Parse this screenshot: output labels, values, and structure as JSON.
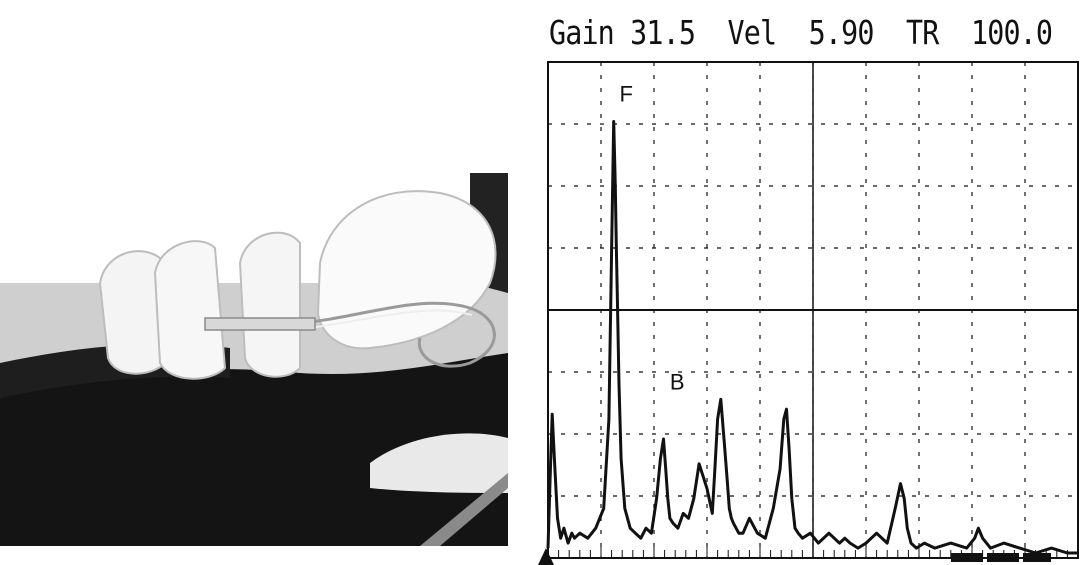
{
  "header": {
    "gain_label": "Gain",
    "gain_value": "31.5",
    "vel_label": "Vel",
    "vel_value": "5.90",
    "tr_label": "TR",
    "tr_value": "100.0"
  },
  "chart_data": {
    "type": "line",
    "title": "",
    "xlabel": "",
    "ylabel": "",
    "xlim": [
      0,
      10
    ],
    "ylim": [
      0,
      100
    ],
    "grid": true,
    "gate_level": 50,
    "annotations": [
      {
        "text": "F",
        "x": 1.35,
        "y": 92
      },
      {
        "text": "B",
        "x": 2.3,
        "y": 34
      }
    ],
    "series": [
      {
        "x": [
          0,
          0.04,
          0.08,
          0.12,
          0.18,
          0.24,
          0.3,
          0.38,
          0.45,
          0.5,
          0.6,
          0.75,
          0.9,
          1.05,
          1.15,
          1.2,
          1.24,
          1.27,
          1.29,
          1.31,
          1.34,
          1.38,
          1.45,
          1.55,
          1.65,
          1.75,
          1.85,
          1.95,
          2.05,
          2.12,
          2.18,
          2.22,
          2.26,
          2.3,
          2.36,
          2.45,
          2.55,
          2.65,
          2.75,
          2.85,
          3.0,
          3.1,
          3.15,
          3.2,
          3.26,
          3.32,
          3.38,
          3.42,
          3.46,
          3.5,
          3.55,
          3.6,
          3.68,
          3.8,
          3.95,
          4.1,
          4.25,
          4.38,
          4.45,
          4.5,
          4.55,
          4.6,
          4.66,
          4.72,
          4.8,
          4.95,
          5.1,
          5.3,
          5.5,
          5.6,
          5.7,
          5.85,
          6.0,
          6.2,
          6.4,
          6.55,
          6.65,
          6.72,
          6.78,
          6.85,
          6.95,
          7.1,
          7.3,
          7.6,
          7.9,
          8.05,
          8.12,
          8.2,
          8.35,
          8.6,
          8.9,
          9.2,
          9.5,
          9.8,
          10
        ],
        "values": [
          2,
          16,
          29,
          20,
          8,
          4,
          6,
          3,
          5,
          4,
          5,
          4,
          6,
          10,
          28,
          62,
          88,
          75,
          62,
          52,
          35,
          20,
          10,
          6,
          5,
          4,
          6,
          5,
          12,
          20,
          24,
          18,
          12,
          8,
          7,
          6,
          9,
          8,
          12,
          19,
          14,
          9,
          18,
          28,
          32,
          24,
          16,
          10,
          8,
          7,
          6,
          5,
          5,
          8,
          5,
          4,
          10,
          18,
          28,
          30,
          22,
          12,
          6,
          5,
          4,
          5,
          3,
          5,
          3,
          4,
          3,
          2,
          3,
          5,
          3,
          10,
          15,
          12,
          6,
          3,
          2,
          3,
          2,
          3,
          2,
          4,
          6,
          4,
          2,
          3,
          2,
          1,
          2,
          1,
          1
        ]
      }
    ]
  }
}
